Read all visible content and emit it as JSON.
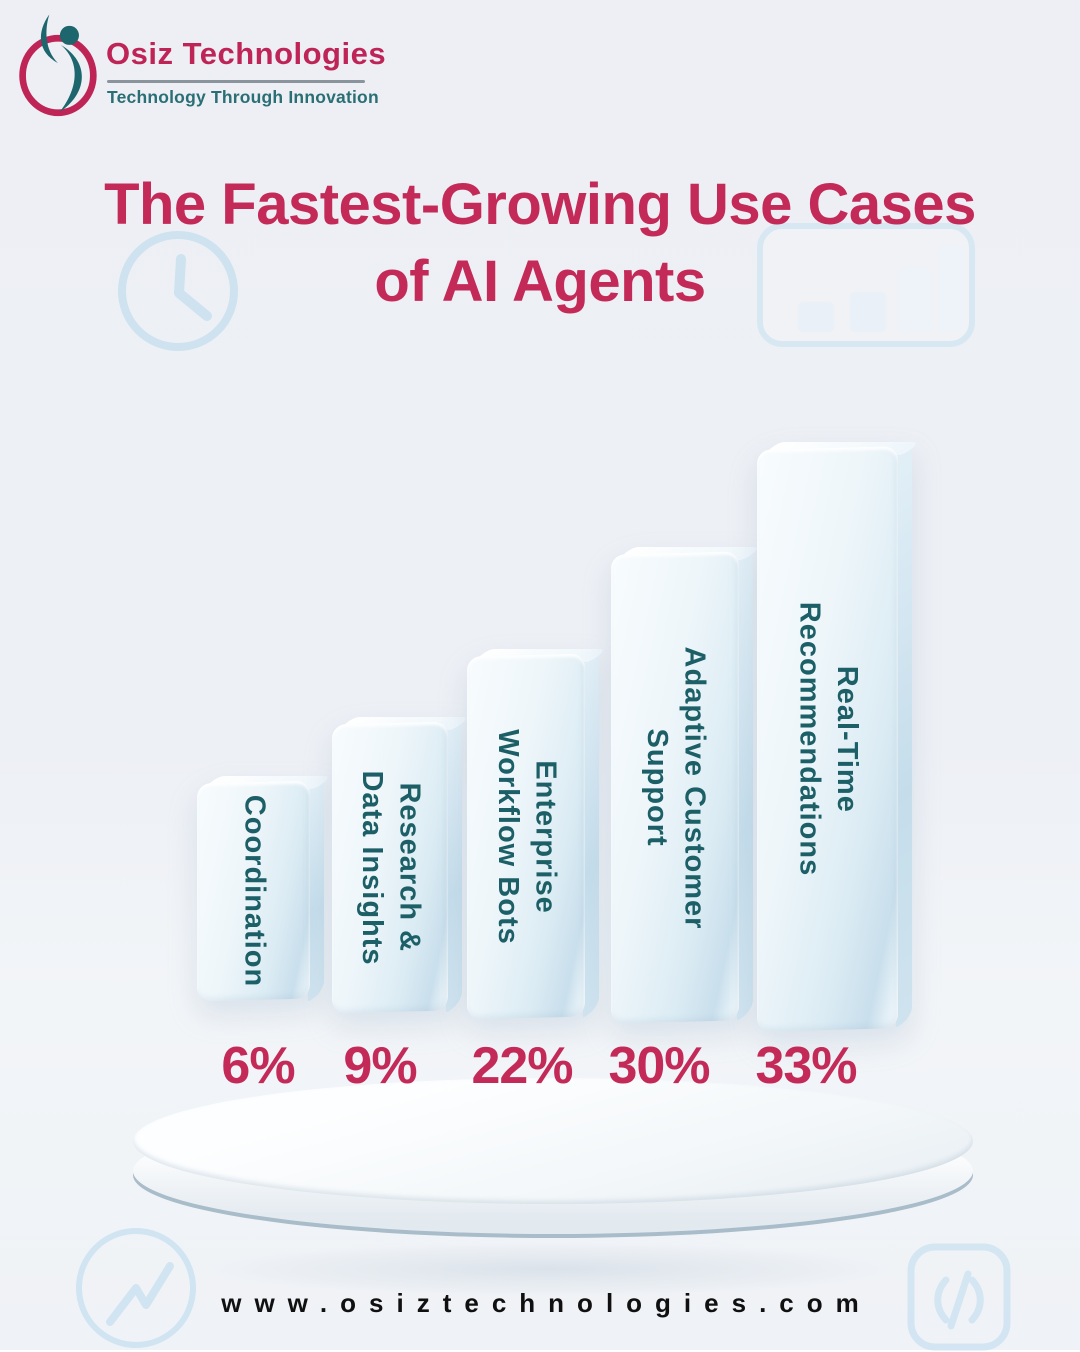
{
  "brand": {
    "name": "Osiz Technologies",
    "tagline": "Technology Through Innovation"
  },
  "title": {
    "line1": "The Fastest-Growing Use Cases",
    "line2": "of AI Agents"
  },
  "chart_data": {
    "type": "bar",
    "title": "The Fastest-Growing Use Cases of AI Agents",
    "categories": [
      "Coordination",
      "Research & Data Insights",
      "Enterprise Workflow Bots",
      "Adaptive Customer Support",
      "Real-Time Recommendations"
    ],
    "values": [
      6,
      9,
      22,
      30,
      33
    ],
    "unit": "%",
    "value_labels": [
      "6%",
      "9%",
      "22%",
      "30%",
      "33%"
    ],
    "orientation": "vertical",
    "category_label_position": "inside-bar-rotated",
    "value_label_position": "below-bar",
    "grid": false,
    "legend": false
  },
  "bars": [
    {
      "label_lines": [
        "Coordination"
      ],
      "value_label": "6%"
    },
    {
      "label_lines": [
        "Research &",
        "Data Insights"
      ],
      "value_label": "9%"
    },
    {
      "label_lines": [
        "Enterprise",
        "Workflow Bots"
      ],
      "value_label": "22%"
    },
    {
      "label_lines": [
        "Adaptive Customer",
        "Support"
      ],
      "value_label": "30%"
    },
    {
      "label_lines": [
        "Real-Time",
        "Recommendations"
      ],
      "value_label": "33%"
    }
  ],
  "footer": {
    "website": "www.osiztechnologies.com"
  },
  "decor": {
    "icons": [
      "clock-icon",
      "bar-chart-icon",
      "trend-line-icon",
      "code-icon"
    ]
  },
  "colors": {
    "accent_crimson": "#c42a58",
    "bar_label_teal": "#1c5f66",
    "tagline_teal": "#2a6f75",
    "decor_light_blue": "#c7dff0",
    "bar_face_blue": "#d9eaf3",
    "url_black": "#101010",
    "background": "#edeff4"
  }
}
